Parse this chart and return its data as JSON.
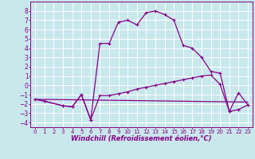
{
  "background_color": "#c8e8ec",
  "grid_color": "#ffffff",
  "line_color": "#880088",
  "xlim": [
    -0.5,
    23.5
  ],
  "ylim": [
    -4.5,
    9.0
  ],
  "xticks": [
    0,
    1,
    2,
    3,
    4,
    5,
    6,
    7,
    8,
    9,
    10,
    11,
    12,
    13,
    14,
    15,
    16,
    17,
    18,
    19,
    20,
    21,
    22,
    23
  ],
  "yticks": [
    -4,
    -3,
    -2,
    -1,
    0,
    1,
    2,
    3,
    4,
    5,
    6,
    7,
    8
  ],
  "xlabel": "Windchill (Refroidissement éolien,°C)",
  "series1_x": [
    0,
    1,
    3,
    4,
    5,
    6,
    7,
    8,
    9,
    10,
    11,
    12,
    13,
    14,
    15,
    16,
    17,
    18,
    19,
    20,
    21,
    22,
    23
  ],
  "series1_y": [
    -1.5,
    -1.7,
    -2.2,
    -2.3,
    -1.0,
    -3.7,
    4.5,
    4.5,
    6.8,
    7.0,
    6.5,
    7.8,
    8.0,
    7.6,
    7.0,
    4.3,
    4.0,
    3.0,
    1.5,
    1.3,
    -2.8,
    -0.8,
    -2.1
  ],
  "series2_x": [
    0,
    1,
    3,
    4,
    5,
    6,
    7,
    8,
    9,
    10,
    11,
    12,
    13,
    14,
    15,
    16,
    17,
    18,
    19,
    20,
    21,
    22,
    23
  ],
  "series2_y": [
    -1.5,
    -1.7,
    -2.2,
    -2.3,
    -1.0,
    -3.7,
    -1.1,
    -1.1,
    -0.9,
    -0.7,
    -0.4,
    -0.2,
    0.0,
    0.2,
    0.4,
    0.6,
    0.8,
    1.0,
    1.1,
    0.1,
    -2.8,
    -2.6,
    -2.1
  ],
  "series3_x": [
    0,
    23
  ],
  "series3_y": [
    -1.5,
    -1.8
  ],
  "tick_fontsize": 5.5,
  "label_fontsize": 6.0,
  "linewidth": 0.9,
  "markersize": 3.0,
  "markeredgewidth": 0.8
}
